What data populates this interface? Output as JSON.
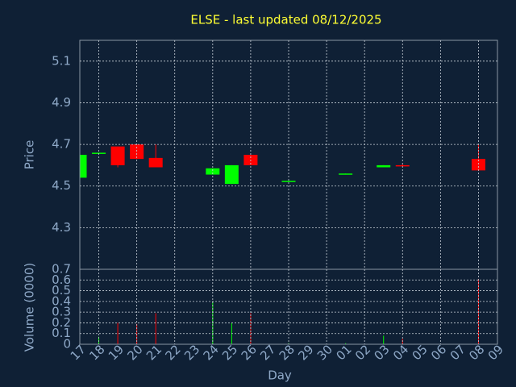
{
  "chart_data": [
    {
      "type": "candlestick",
      "title": "ELSE - last updated 08/12/2025",
      "y_label": "Price",
      "categories": [
        "17",
        "18",
        "19",
        "20",
        "21",
        "22",
        "23",
        "24",
        "25",
        "26",
        "27",
        "28",
        "29",
        "30",
        "01",
        "02",
        "03",
        "04",
        "05",
        "06",
        "07",
        "08",
        "09"
      ],
      "open": [
        4.54,
        4.655,
        4.69,
        4.7,
        4.635,
        null,
        null,
        4.555,
        4.51,
        4.65,
        null,
        4.52,
        null,
        null,
        4.555,
        null,
        4.59,
        4.6,
        null,
        null,
        null,
        4.63,
        null
      ],
      "high": [
        4.65,
        4.66,
        4.69,
        4.7,
        4.7,
        null,
        null,
        4.585,
        4.6,
        4.65,
        null,
        4.525,
        null,
        null,
        4.56,
        null,
        4.6,
        4.605,
        null,
        null,
        null,
        4.7,
        null
      ],
      "low": [
        4.54,
        4.655,
        4.59,
        4.63,
        4.59,
        null,
        null,
        4.555,
        4.51,
        4.6,
        null,
        4.52,
        null,
        null,
        4.555,
        null,
        4.59,
        4.595,
        null,
        null,
        null,
        4.575,
        null
      ],
      "close": [
        4.65,
        4.66,
        4.6,
        4.63,
        4.59,
        null,
        null,
        4.585,
        4.6,
        4.6,
        null,
        4.525,
        null,
        null,
        4.56,
        null,
        4.6,
        4.595,
        null,
        null,
        null,
        4.575,
        null
      ],
      "up_color": "#00ff00",
      "down_color": "#ff0000",
      "ylim": [
        4.1,
        5.2
      ],
      "yticks": [
        4.3,
        4.5,
        4.7,
        4.9,
        5.1
      ],
      "grid": true
    },
    {
      "type": "bar",
      "y_label": "Volume (0000)",
      "x_label": "Day",
      "values": [
        0.01,
        0.07,
        0.2,
        0.19,
        0.29,
        null,
        null,
        0.4,
        0.2,
        0.29,
        null,
        0.01,
        null,
        null,
        0.01,
        null,
        0.08,
        0.05,
        null,
        null,
        null,
        0.61,
        null
      ],
      "ylim": [
        0,
        0.7
      ],
      "yticks": [
        0,
        0.1,
        0.2,
        0.3,
        0.4,
        0.5,
        0.6,
        0.7
      ],
      "grid": true
    }
  ]
}
